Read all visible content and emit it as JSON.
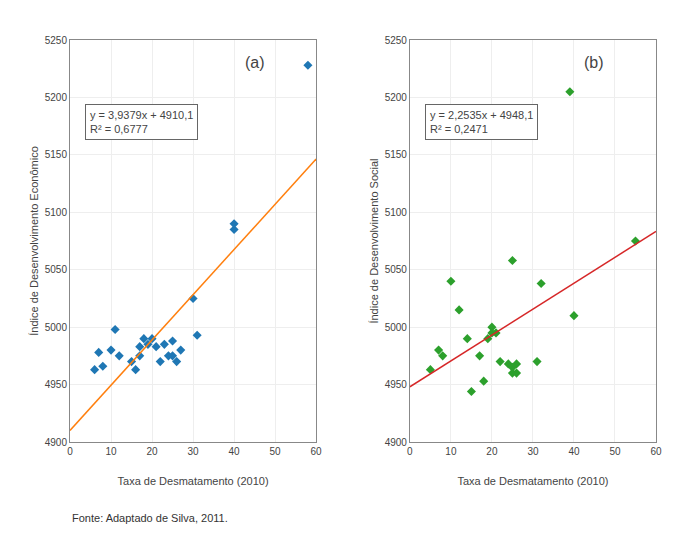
{
  "chart_data": [
    {
      "type": "scatter",
      "title": "(a)",
      "xlabel": "Taxa de Desmatamento (2010)",
      "ylabel": "Índice de Desenvolvimento Econômico",
      "annotations": [
        "y = 3,9379x + 4910,1",
        "R² = 0,6777"
      ],
      "series": [
        {
          "type": "scatter",
          "marker": "diamond",
          "x": [
            6,
            7,
            8,
            10,
            11,
            12,
            15,
            16,
            17,
            17,
            18,
            19,
            20,
            21,
            22,
            23,
            24,
            25,
            25,
            26,
            27,
            30,
            31,
            40,
            40,
            58
          ],
          "values": [
            4963,
            4978,
            4966,
            4980,
            4998,
            4975,
            4970,
            4963,
            4975,
            4983,
            4990,
            4985,
            4990,
            4983,
            4970,
            4985,
            4975,
            4988,
            4975,
            4970,
            4980,
            5025,
            4993,
            5085,
            5090,
            5228
          ]
        },
        {
          "type": "line",
          "line_style": "solid",
          "x": [
            0,
            60
          ],
          "values": [
            4910.1,
            5146.374
          ]
        }
      ],
      "xlim": [
        0,
        60
      ],
      "ylim": [
        4900,
        5250
      ],
      "xticks": [
        0,
        10,
        20,
        30,
        40,
        50,
        60
      ],
      "yticks": [
        4900,
        4950,
        5000,
        5050,
        5100,
        5150,
        5200,
        5250
      ],
      "grid": true
    },
    {
      "type": "scatter",
      "title": "(b)",
      "xlabel": "Taxa de Desmatamento (2010)",
      "ylabel": "Índice de Desenvolvimento Social",
      "annotations": [
        "y = 2,2535x + 4948,1",
        "R² = 0,2471"
      ],
      "series": [
        {
          "type": "scatter",
          "marker": "diamond",
          "x": [
            5,
            7,
            8,
            10,
            12,
            14,
            15,
            17,
            18,
            19,
            20,
            20,
            21,
            22,
            24,
            25,
            25,
            25,
            26,
            26,
            31,
            32,
            39,
            40,
            55
          ],
          "values": [
            4963,
            4980,
            4975,
            5040,
            5015,
            4990,
            4944,
            4975,
            4953,
            4990,
            5000,
            4995,
            4995,
            4970,
            4968,
            4960,
            4965,
            5058,
            4968,
            4960,
            4970,
            5038,
            5205,
            5010,
            5075
          ]
        },
        {
          "type": "line",
          "line_style": "solid",
          "x": [
            0,
            60
          ],
          "values": [
            4948.1,
            5083.31
          ]
        }
      ],
      "xlim": [
        0,
        60
      ],
      "ylim": [
        4900,
        5250
      ],
      "xticks": [
        0,
        10,
        20,
        30,
        40,
        50,
        60
      ],
      "yticks": [
        4900,
        4950,
        5000,
        5050,
        5100,
        5150,
        5200,
        5250
      ],
      "grid": true
    }
  ],
  "source": "Fonte: Adaptado de Silva, 2011."
}
